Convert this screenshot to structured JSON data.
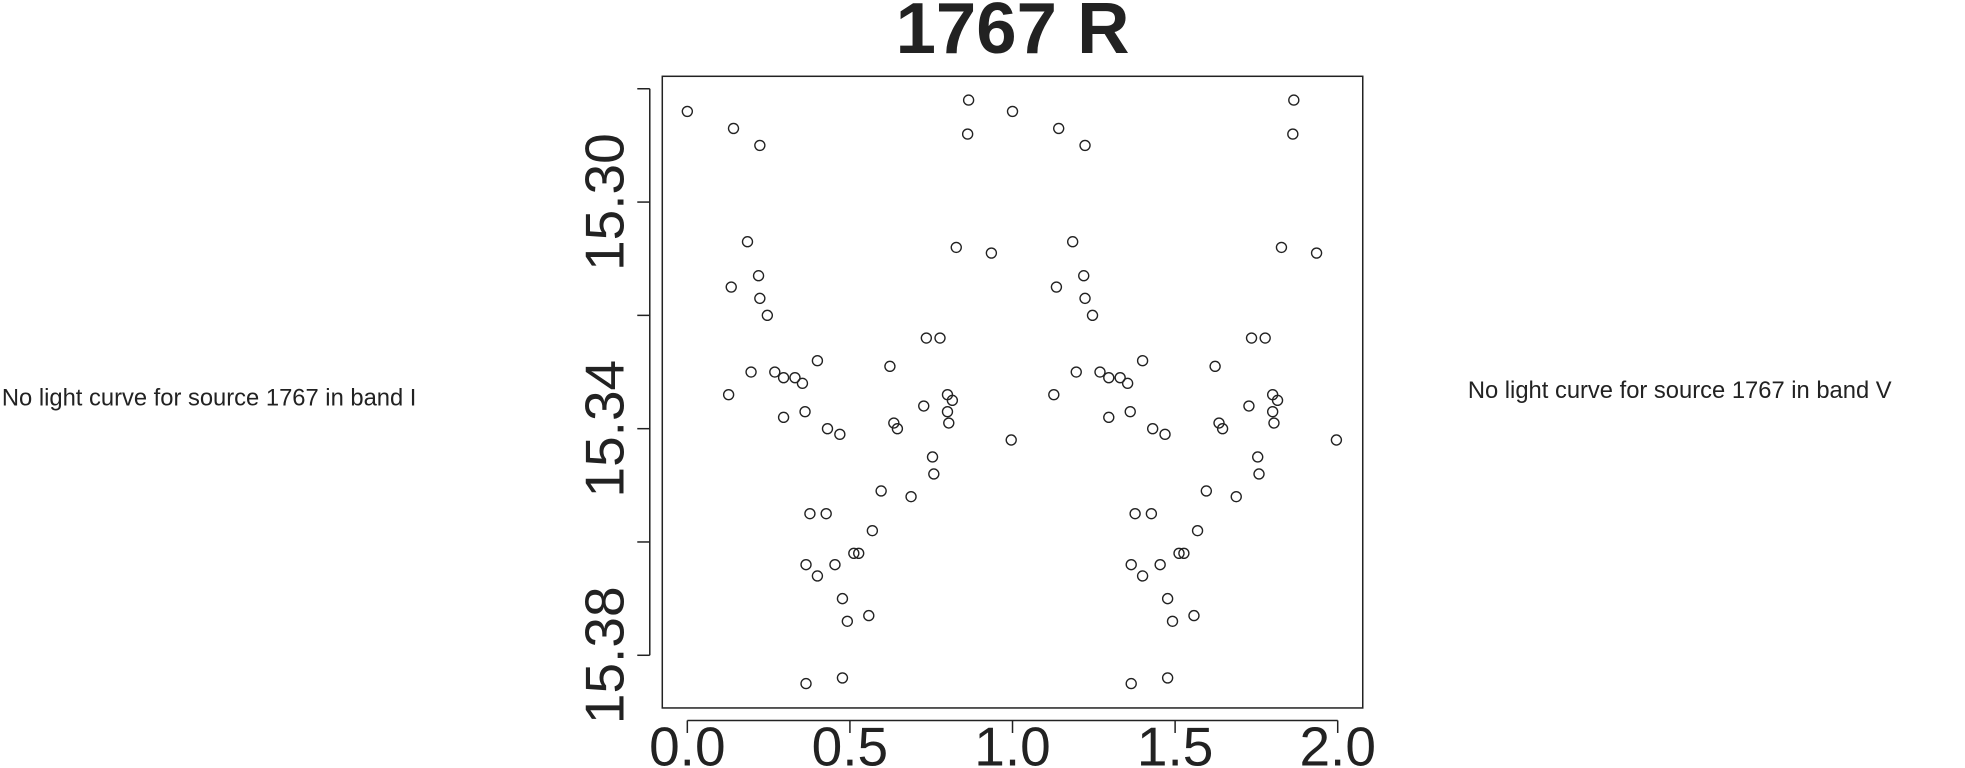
{
  "chart_data": {
    "type": "scatter",
    "title": "1767 R",
    "left_note": "No light curve for source 1767 in band I",
    "right_note": "No light curve for source 1767 in band V",
    "x": [
      0.0,
      0.142,
      0.223,
      0.185,
      0.135,
      0.219,
      0.223,
      0.246,
      0.196,
      0.127,
      0.269,
      0.296,
      0.331,
      0.354,
      0.296,
      0.362,
      0.4,
      0.431,
      0.469,
      0.377,
      0.427,
      0.365,
      0.4,
      0.454,
      0.477,
      0.492,
      0.512,
      0.527,
      0.558,
      0.569,
      0.596,
      0.365,
      0.477,
      0.623,
      0.635,
      0.646,
      0.688,
      0.727,
      0.735,
      0.754,
      0.758,
      0.777,
      0.8,
      0.8,
      0.804,
      0.815,
      0.827,
      0.865,
      0.862,
      0.935,
      0.996,
      1.0,
      1.142,
      1.223,
      1.185,
      1.135,
      1.219,
      1.223,
      1.246,
      1.196,
      1.127,
      1.269,
      1.296,
      1.331,
      1.354,
      1.296,
      1.362,
      1.4,
      1.431,
      1.469,
      1.377,
      1.427,
      1.365,
      1.4,
      1.454,
      1.477,
      1.492,
      1.512,
      1.527,
      1.558,
      1.569,
      1.596,
      1.365,
      1.477,
      1.623,
      1.635,
      1.646,
      1.688,
      1.727,
      1.735,
      1.754,
      1.758,
      1.777,
      1.8,
      1.8,
      1.804,
      1.815,
      1.827,
      1.865,
      1.862,
      1.935,
      1.996
    ],
    "y": [
      15.284,
      15.287,
      15.29,
      15.307,
      15.315,
      15.313,
      15.317,
      15.32,
      15.33,
      15.334,
      15.33,
      15.331,
      15.331,
      15.332,
      15.338,
      15.337,
      15.328,
      15.34,
      15.341,
      15.355,
      15.355,
      15.364,
      15.366,
      15.364,
      15.37,
      15.374,
      15.362,
      15.362,
      15.373,
      15.358,
      15.351,
      15.385,
      15.384,
      15.329,
      15.339,
      15.34,
      15.352,
      15.336,
      15.324,
      15.345,
      15.348,
      15.324,
      15.334,
      15.337,
      15.339,
      15.335,
      15.308,
      15.282,
      15.288,
      15.309,
      15.342,
      15.284,
      15.287,
      15.29,
      15.307,
      15.315,
      15.313,
      15.317,
      15.32,
      15.33,
      15.334,
      15.33,
      15.331,
      15.331,
      15.332,
      15.338,
      15.337,
      15.328,
      15.34,
      15.341,
      15.355,
      15.355,
      15.364,
      15.366,
      15.364,
      15.37,
      15.374,
      15.362,
      15.362,
      15.373,
      15.358,
      15.351,
      15.385,
      15.384,
      15.329,
      15.339,
      15.34,
      15.352,
      15.336,
      15.324,
      15.345,
      15.348,
      15.324,
      15.334,
      15.337,
      15.339,
      15.335,
      15.308,
      15.282,
      15.288,
      15.309,
      15.342
    ],
    "xlim": [
      -0.077,
      2.077
    ],
    "ylim": [
      15.3893,
      15.2778
    ],
    "xticks": [
      {
        "value": 0,
        "label": "0.0"
      },
      {
        "value": 0.5,
        "label": "0.5"
      },
      {
        "value": 1,
        "label": "1.0"
      },
      {
        "value": 1.5,
        "label": "1.5"
      },
      {
        "value": 2,
        "label": "2.0"
      }
    ],
    "yticks": [
      {
        "value": 15.28,
        "label": null
      },
      {
        "value": 15.3,
        "label": "15.30"
      },
      {
        "value": 15.32,
        "label": null
      },
      {
        "value": 15.34,
        "label": "15.34"
      },
      {
        "value": 15.36,
        "label": null
      },
      {
        "value": 15.38,
        "label": "15.38"
      }
    ],
    "color": "#222222"
  }
}
